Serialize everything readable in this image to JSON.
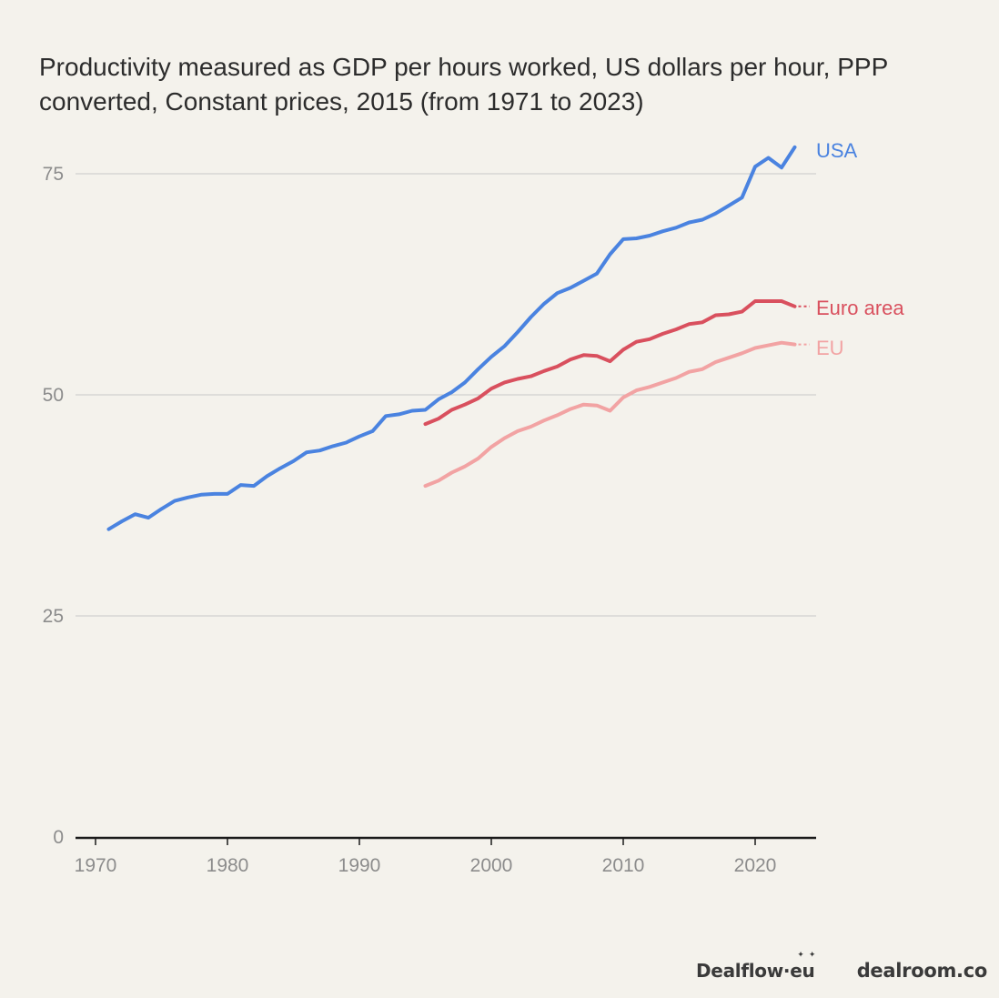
{
  "chart_data": {
    "type": "line",
    "title": "Productivity measured as GDP per hours worked, US dollars per hour, PPP converted, Constant prices, 2015 (from 1971 to 2023)",
    "xlabel": "",
    "ylabel": "",
    "xlim": [
      1970,
      2025
    ],
    "ylim": [
      0,
      80
    ],
    "x_ticks": [
      1970,
      1980,
      1990,
      2000,
      2010,
      2020
    ],
    "y_ticks": [
      0,
      25,
      50,
      75
    ],
    "grid": "horizontal",
    "legend": "direct-labels-right",
    "series": [
      {
        "name": "USA",
        "color": "#4a83e0",
        "x": [
          1971,
          1972,
          1973,
          1974,
          1975,
          1976,
          1977,
          1978,
          1979,
          1980,
          1981,
          1982,
          1983,
          1984,
          1985,
          1986,
          1987,
          1988,
          1989,
          1990,
          1991,
          1992,
          1993,
          1994,
          1995,
          1996,
          1997,
          1998,
          1999,
          2000,
          2001,
          2002,
          2003,
          2004,
          2005,
          2006,
          2007,
          2008,
          2009,
          2010,
          2011,
          2012,
          2013,
          2014,
          2015,
          2016,
          2017,
          2018,
          2019,
          2020,
          2021,
          2022,
          2023
        ],
        "values": [
          34.8,
          35.7,
          36.5,
          36.1,
          37.1,
          38.0,
          38.4,
          38.7,
          38.8,
          38.8,
          39.8,
          39.7,
          40.8,
          41.7,
          42.5,
          43.5,
          43.7,
          44.2,
          44.6,
          45.3,
          45.9,
          47.6,
          47.8,
          48.2,
          48.3,
          49.5,
          50.3,
          51.4,
          52.9,
          54.3,
          55.5,
          57.1,
          58.8,
          60.3,
          61.5,
          62.1,
          62.9,
          63.7,
          65.9,
          67.6,
          67.7,
          68.0,
          68.5,
          68.9,
          69.5,
          69.8,
          70.5,
          71.4,
          72.3,
          75.8,
          76.8,
          75.7,
          78.0
        ]
      },
      {
        "name": "Euro area",
        "color": "#d9505e",
        "x": [
          1995,
          1996,
          1997,
          1998,
          1999,
          2000,
          2001,
          2002,
          2003,
          2004,
          2005,
          2006,
          2007,
          2008,
          2009,
          2010,
          2011,
          2012,
          2013,
          2014,
          2015,
          2016,
          2017,
          2018,
          2019,
          2020,
          2021,
          2022,
          2023
        ],
        "values": [
          46.7,
          47.3,
          48.3,
          48.9,
          49.6,
          50.7,
          51.4,
          51.8,
          52.1,
          52.7,
          53.2,
          54.0,
          54.5,
          54.4,
          53.8,
          55.1,
          56.0,
          56.3,
          56.9,
          57.4,
          58.0,
          58.2,
          59.0,
          59.1,
          59.4,
          60.6,
          60.6,
          60.6,
          60.0
        ]
      },
      {
        "name": "EU",
        "color": "#f2a3a3",
        "x": [
          1995,
          1996,
          1997,
          1998,
          1999,
          2000,
          2001,
          2002,
          2003,
          2004,
          2005,
          2006,
          2007,
          2008,
          2009,
          2010,
          2011,
          2012,
          2013,
          2014,
          2015,
          2016,
          2017,
          2018,
          2019,
          2020,
          2021,
          2022,
          2023
        ],
        "values": [
          39.7,
          40.3,
          41.2,
          41.9,
          42.8,
          44.1,
          45.1,
          45.9,
          46.4,
          47.1,
          47.7,
          48.4,
          48.9,
          48.8,
          48.2,
          49.7,
          50.5,
          50.9,
          51.4,
          51.9,
          52.6,
          52.9,
          53.7,
          54.2,
          54.7,
          55.3,
          55.6,
          55.9,
          55.7
        ]
      }
    ]
  },
  "footer": {
    "logo_dealflow": "Dealflow·eu",
    "logo_dealroom": "dealroom.co"
  }
}
